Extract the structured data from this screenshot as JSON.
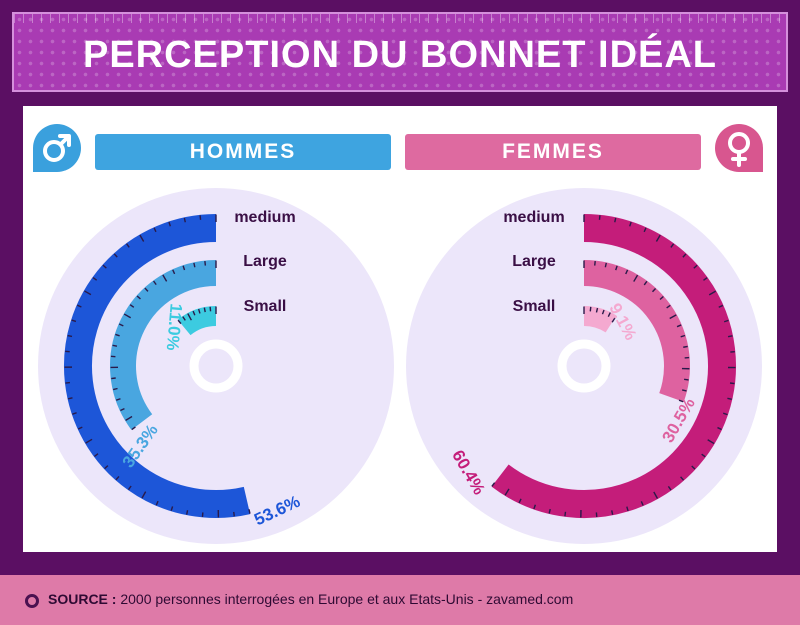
{
  "title": "PERCEPTION DU BONNET IDÉAL",
  "headers": {
    "men": "HOMMES",
    "women": "FEMMES"
  },
  "source": {
    "label": "SOURCE :",
    "text": "2000 personnes interrogées en Europe et aux Etats-Unis - zavamed.com"
  },
  "colors": {
    "background": "#5b0f63",
    "title_bg": "#a93bb3",
    "men_medium": "#1d56d8",
    "men_large": "#49a6e0",
    "men_small": "#3ccbe0",
    "women_medium": "#c41d7a",
    "women_large": "#de62a0",
    "women_small": "#f4a9d0",
    "disc": "#ece6fa",
    "footer": "#de7aa8"
  },
  "icons": {
    "men": "male-symbol-icon",
    "women": "female-symbol-icon",
    "source": "circle-bullet-icon"
  },
  "chart_data": [
    {
      "type": "radial-bar",
      "title": "HOMMES",
      "categories": [
        "medium",
        "Large",
        "Small"
      ],
      "values": [
        53.6,
        35.3,
        11.0
      ],
      "value_labels": [
        "53.6%",
        "35.3%",
        "11.0%"
      ],
      "unit": "%"
    },
    {
      "type": "radial-bar",
      "title": "FEMMES",
      "categories": [
        "medium",
        "Large",
        "Small"
      ],
      "values": [
        60.4,
        30.5,
        9.1
      ],
      "value_labels": [
        "60.4%",
        "30.5%",
        "9.1%"
      ],
      "unit": "%"
    }
  ]
}
